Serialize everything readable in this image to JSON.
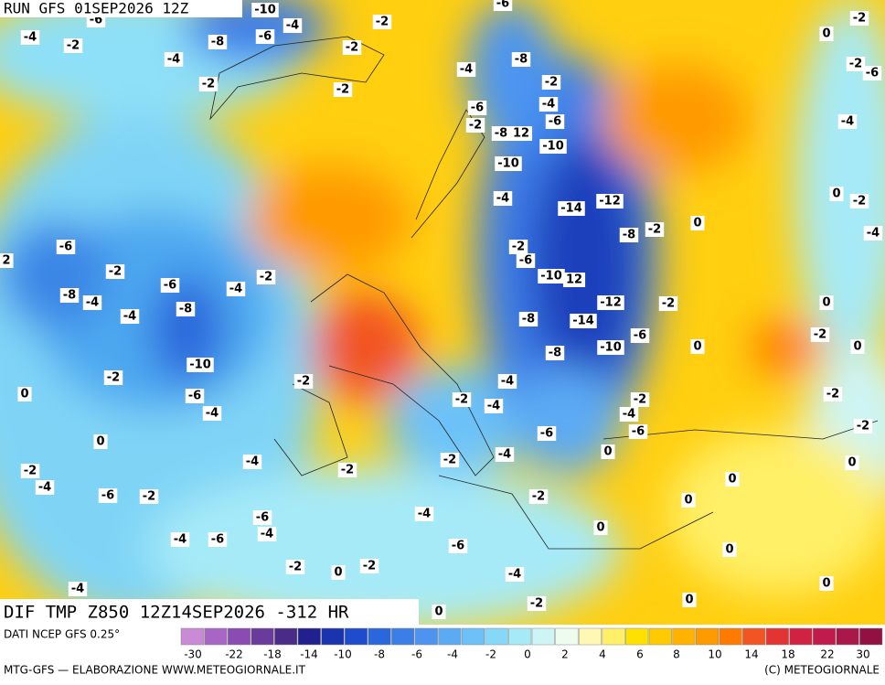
{
  "header": {
    "run": "RUN GFS 01SEP2026 12Z",
    "title": "DIF TMP Z850 12Z14SEP2026 -312 HR"
  },
  "map": {
    "labels": [
      -6,
      -4,
      -2,
      -4,
      -8,
      -6,
      -4,
      -10,
      -2,
      -2,
      -2,
      -2,
      -6,
      -8,
      -4,
      -2,
      -4,
      -6,
      -6,
      -2,
      -8,
      12,
      -10,
      -10,
      -4,
      -12,
      -14,
      0,
      -8,
      -2,
      -2,
      -6,
      -10,
      12,
      -12,
      -2,
      -8,
      -14,
      -6,
      -10,
      0,
      -8,
      -2,
      0,
      -2,
      -6,
      -4,
      0,
      -2,
      -4,
      0,
      -2,
      0,
      -2,
      -2,
      0,
      -6,
      2,
      -2,
      -2,
      -6,
      -4,
      -8,
      -4,
      -8,
      -4,
      -10,
      -2,
      0,
      -6,
      -4,
      -2,
      -2,
      -4,
      -4,
      -2,
      -4,
      -6,
      -6,
      0,
      -4,
      0,
      -4,
      -2,
      -2,
      -4,
      -2,
      -6,
      -2,
      -2,
      0,
      0,
      -6,
      -4,
      -4,
      -4,
      -6,
      -6,
      0,
      0,
      -2,
      0,
      -2,
      -4,
      0,
      -4,
      -2,
      0,
      0
    ]
  },
  "legend": {
    "source": "DATI NCEP GFS 0.25°",
    "colors": [
      "#c98ad6",
      "#a866c4",
      "#8a4cb2",
      "#6a3a9c",
      "#4a2c88",
      "#22208e",
      "#1a34b0",
      "#1e4ccc",
      "#2a66dc",
      "#3c7ee8",
      "#4c94f0",
      "#5caaf4",
      "#6cc2f8",
      "#86d8f8",
      "#a6eaf8",
      "#cdf5f6",
      "#eefcee",
      "#fff8b4",
      "#fff068",
      "#ffe100",
      "#ffca00",
      "#ffb200",
      "#ff9a00",
      "#ff7a00",
      "#f25422",
      "#e23432",
      "#d22242",
      "#c21a4a",
      "#aa184a",
      "#921042"
    ],
    "labels": [
      -30,
      -22,
      -18,
      -14,
      -10,
      -8,
      -6,
      -4,
      -2,
      0,
      2,
      4,
      6,
      8,
      10,
      14,
      18,
      22,
      30
    ]
  },
  "footer": {
    "left": "MTG-GFS — ELABORAZIONE WWW.METEOGIORNALE.IT",
    "right": "(C) METEOGIORNALE"
  }
}
